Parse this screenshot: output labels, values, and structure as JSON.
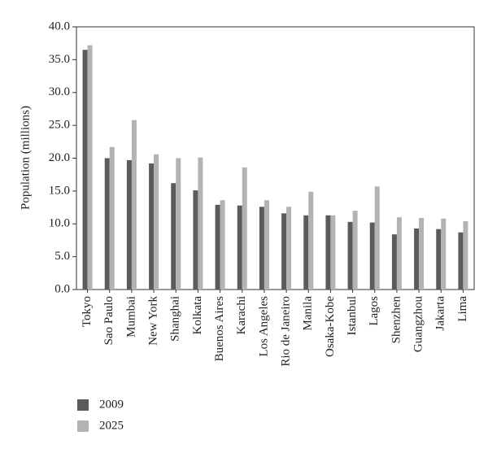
{
  "chart_data": {
    "type": "bar",
    "y_label": "Population (millions)",
    "categories": [
      "Tokyo",
      "Sao Paulo",
      "Mumbai",
      "New York",
      "Shanghai",
      "Kolkata",
      "Buenos Aires",
      "Karachi",
      "Los Angeles",
      "Rio de Janeiro",
      "Manila",
      "Osaka-Kobe",
      "Istanbul",
      "Lagos",
      "Shenzhen",
      "Guangzhou",
      "Jakarta",
      "Lima"
    ],
    "series": [
      {
        "name": "2009",
        "color": "#5b5b5b",
        "values": [
          36.5,
          20.0,
          19.7,
          19.2,
          16.2,
          15.1,
          12.9,
          12.8,
          12.6,
          11.6,
          11.3,
          11.3,
          10.3,
          10.2,
          8.4,
          9.3,
          9.2,
          8.7
        ]
      },
      {
        "name": "2025",
        "color": "#b3b3b3",
        "values": [
          37.2,
          21.7,
          25.8,
          20.6,
          20.0,
          20.1,
          13.6,
          18.6,
          13.6,
          12.6,
          14.9,
          11.3,
          12.0,
          15.7,
          11.0,
          10.9,
          10.8,
          10.4
        ]
      }
    ],
    "ylim": [
      0,
      40
    ],
    "yticks": [
      {
        "value": 0,
        "label": "0.0"
      },
      {
        "value": 5,
        "label": "5.0"
      },
      {
        "value": 10,
        "label": "10.0"
      },
      {
        "value": 15,
        "label": "15.0"
      },
      {
        "value": 20,
        "label": "20.0"
      },
      {
        "value": 25,
        "label": "25.0"
      },
      {
        "value": 30,
        "label": "30.0"
      },
      {
        "value": 35,
        "label": "35.0"
      },
      {
        "value": 40,
        "label": "40.0"
      }
    ]
  }
}
